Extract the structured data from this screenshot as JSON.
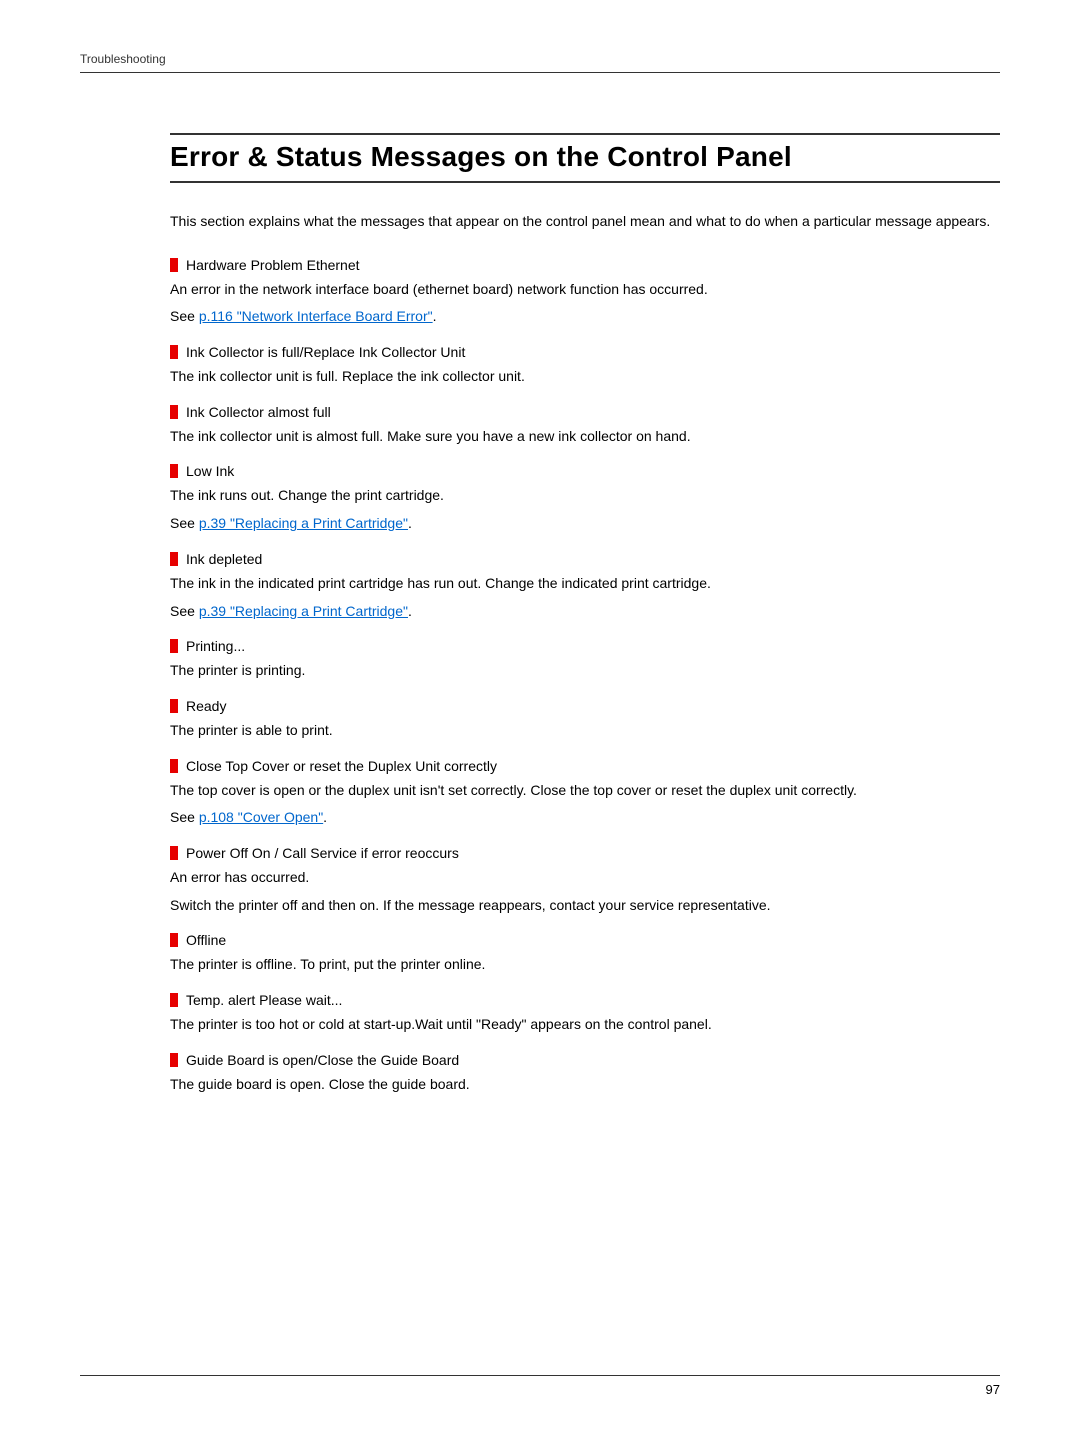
{
  "colors": {
    "accent_red": "#e60000",
    "link_blue": "#0066cc",
    "rule": "#333333",
    "text": "#000000",
    "background": "#ffffff"
  },
  "typography": {
    "body_fontsize_pt": 11,
    "title_fontsize_pt": 21,
    "chapter_fontsize_pt": 9,
    "page_num_fontsize_pt": 10,
    "font_family": "sans-serif"
  },
  "header": {
    "chapter": "Troubleshooting"
  },
  "title": "Error & Status Messages on the Control Panel",
  "intro": "This section explains what the messages that appear on the control panel mean and what to do when a particular message appears.",
  "messages": [
    {
      "name": "Hardware Problem Ethernet",
      "desc": "An error in the network interface board (ethernet board) network function has occurred.",
      "see_prefix": "See ",
      "see_link": "p.116 \"Network Interface Board Error\"",
      "see_suffix": "."
    },
    {
      "name": "Ink Collector is full/Replace Ink Collector Unit",
      "desc": "The ink collector unit is full. Replace the ink collector unit."
    },
    {
      "name": "Ink Collector almost full",
      "desc": "The ink collector unit is almost full. Make sure you have a new ink collector on hand."
    },
    {
      "name": "Low Ink",
      "desc": "The ink runs out. Change the print cartridge.",
      "see_prefix": "See ",
      "see_link": "p.39 \"Replacing a Print Cartridge\"",
      "see_suffix": "."
    },
    {
      "name": "Ink depleted",
      "desc": "The ink in the indicated print cartridge has run out. Change the indicated print cartridge.",
      "see_prefix": "See ",
      "see_link": "p.39 \"Replacing a Print Cartridge\"",
      "see_suffix": "."
    },
    {
      "name": "Printing...",
      "desc": "The printer is printing."
    },
    {
      "name": "Ready",
      "desc": "The printer is able to print."
    },
    {
      "name": "Close Top Cover or reset the Duplex Unit correctly",
      "desc": "The top cover is open or the duplex unit isn't set correctly. Close the top cover or reset the duplex unit correctly.",
      "see_prefix": "See ",
      "see_link": "p.108 \"Cover Open\"",
      "see_suffix": "."
    },
    {
      "name": "Power Off On / Call Service if error reoccurs",
      "desc": "An error has occurred.",
      "desc2": "Switch the printer off and then on. If the message reappears, contact your service representative."
    },
    {
      "name": "Offline",
      "desc": "The printer is offline. To print, put the printer online."
    },
    {
      "name": "Temp. alert Please wait...",
      "desc": "The printer is too hot or cold at start-up.Wait until \"Ready\" appears on the control panel."
    },
    {
      "name": "Guide Board is open/Close the Guide Board",
      "desc": "The guide board is open. Close the guide board."
    }
  ],
  "footer": {
    "page_number": "97"
  }
}
